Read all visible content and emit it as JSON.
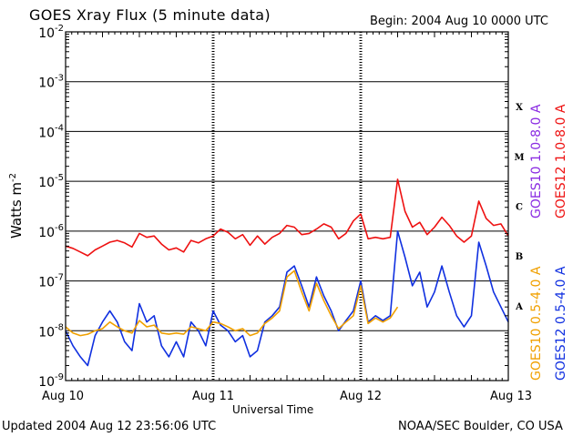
{
  "header": {
    "title": "GOES Xray Flux (5 minute data)",
    "begin": "Begin:  2004 Aug 10 0000 UTC"
  },
  "footer": {
    "updated": "Updated 2004 Aug 12 23:56:06 UTC",
    "credit": "NOAA/SEC Boulder, CO USA"
  },
  "axes": {
    "xlabel": "Universal Time",
    "ylabel_base": "Watts m",
    "ylabel_exp": "-2"
  },
  "legend": {
    "goes10_long": {
      "label": "GOES10 1.0-8.0 A",
      "color": "#8a2be2"
    },
    "goes12_long": {
      "label": "GOES12 1.0-8.0 A",
      "color": "#ee1111"
    },
    "goes10_short": {
      "label": "GOES10 0.5-4.0 A",
      "color": "#f0a000"
    },
    "goes12_short": {
      "label": "GOES12 0.5-4.0 A",
      "color": "#1030e0"
    }
  },
  "chart_data": {
    "type": "line",
    "title": "GOES Xray Flux (5 minute data)",
    "xlabel": "Universal Time",
    "ylabel": "Watts m-2",
    "yscale": "log",
    "ylim": [
      1e-09,
      0.01
    ],
    "xlim_days": [
      0,
      3
    ],
    "x_ticks": [
      {
        "day": 0,
        "label": "Aug 10"
      },
      {
        "day": 1,
        "label": "Aug 11"
      },
      {
        "day": 2,
        "label": "Aug 12"
      },
      {
        "day": 3,
        "label": "Aug 13"
      }
    ],
    "y_ticks": [
      {
        "exp": -2,
        "base": "10",
        "sup": "-2"
      },
      {
        "exp": -3,
        "base": "10",
        "sup": "-3"
      },
      {
        "exp": -4,
        "base": "10",
        "sup": "-4"
      },
      {
        "exp": -5,
        "base": "10",
        "sup": "-5"
      },
      {
        "exp": -6,
        "base": "10",
        "sup": "-6"
      },
      {
        "exp": -7,
        "base": "10",
        "sup": "-7"
      },
      {
        "exp": -8,
        "base": "10",
        "sup": "-8"
      },
      {
        "exp": -9,
        "base": "10",
        "sup": "-9"
      }
    ],
    "flare_classes": [
      {
        "label": "X",
        "exp": -3.5
      },
      {
        "label": "M",
        "exp": -4.5
      },
      {
        "label": "C",
        "exp": -5.5
      },
      {
        "label": "B",
        "exp": -6.5
      },
      {
        "label": "A",
        "exp": -7.5
      }
    ],
    "series": [
      {
        "name": "GOES12 1.0-8.0 A",
        "color": "#ee1111",
        "x": [
          0,
          0.05,
          0.1,
          0.15,
          0.2,
          0.25,
          0.3,
          0.35,
          0.4,
          0.45,
          0.5,
          0.55,
          0.6,
          0.65,
          0.7,
          0.75,
          0.8,
          0.85,
          0.9,
          0.95,
          1.0,
          1.05,
          1.1,
          1.15,
          1.2,
          1.25,
          1.3,
          1.35,
          1.4,
          1.45,
          1.5,
          1.55,
          1.6,
          1.65,
          1.7,
          1.75,
          1.8,
          1.85,
          1.9,
          1.95,
          2.0,
          2.05,
          2.1,
          2.15,
          2.2,
          2.25,
          2.3,
          2.35,
          2.4,
          2.45,
          2.5,
          2.55,
          2.6,
          2.65,
          2.7,
          2.75,
          2.8,
          2.85,
          2.9,
          2.95,
          3.0
        ],
        "values": [
          5e-07,
          4.5e-07,
          3.8e-07,
          3.2e-07,
          4.2e-07,
          5e-07,
          6e-07,
          6.5e-07,
          5.8e-07,
          4.8e-07,
          9e-07,
          7.5e-07,
          8e-07,
          5.5e-07,
          4.2e-07,
          4.6e-07,
          3.8e-07,
          6.5e-07,
          5.8e-07,
          7e-07,
          8e-07,
          1.1e-06,
          9.5e-07,
          7e-07,
          8.5e-07,
          5.2e-07,
          8e-07,
          5.5e-07,
          7.5e-07,
          9e-07,
          1.3e-06,
          1.2e-06,
          8.5e-07,
          9e-07,
          1.1e-06,
          1.4e-06,
          1.2e-06,
          7e-07,
          9e-07,
          1.6e-06,
          2.2e-06,
          7e-07,
          7.5e-07,
          7e-07,
          7.5e-07,
          1.1e-05,
          2.5e-06,
          1.2e-06,
          1.5e-06,
          8.5e-07,
          1.2e-06,
          1.9e-06,
          1.3e-06,
          8e-07,
          6e-07,
          8e-07,
          4e-06,
          1.8e-06,
          1.3e-06,
          1.4e-06,
          8e-07
        ]
      },
      {
        "name": "GOES12 0.5-4.0 A",
        "color": "#1030e0",
        "x": [
          0,
          0.05,
          0.1,
          0.15,
          0.2,
          0.25,
          0.3,
          0.35,
          0.4,
          0.45,
          0.5,
          0.55,
          0.6,
          0.65,
          0.7,
          0.75,
          0.8,
          0.85,
          0.9,
          0.95,
          1.0,
          1.05,
          1.1,
          1.15,
          1.2,
          1.25,
          1.3,
          1.35,
          1.4,
          1.45,
          1.5,
          1.55,
          1.6,
          1.65,
          1.7,
          1.75,
          1.8,
          1.85,
          1.9,
          1.95,
          2.0,
          2.05,
          2.1,
          2.15,
          2.2,
          2.25,
          2.3,
          2.35,
          2.4,
          2.45,
          2.5,
          2.55,
          2.6,
          2.65,
          2.7,
          2.75,
          2.8,
          2.85,
          2.9,
          2.95,
          3.0
        ],
        "values": [
          1e-08,
          5e-09,
          3e-09,
          2e-09,
          8e-09,
          1.5e-08,
          2.5e-08,
          1.5e-08,
          6e-09,
          4e-09,
          3.5e-08,
          1.5e-08,
          2e-08,
          5e-09,
          3e-09,
          6e-09,
          3e-09,
          1.5e-08,
          1e-08,
          5e-09,
          2.5e-08,
          1.3e-08,
          1e-08,
          6e-09,
          8e-09,
          3e-09,
          4e-09,
          1.5e-08,
          2e-08,
          3e-08,
          1.5e-07,
          2e-07,
          8e-08,
          3e-08,
          1.2e-07,
          5e-08,
          2.5e-08,
          1e-08,
          1.6e-08,
          2.5e-08,
          1e-07,
          1.5e-08,
          2e-08,
          1.6e-08,
          2e-08,
          1e-06,
          3e-07,
          8e-08,
          1.5e-07,
          3e-08,
          6e-08,
          2e-07,
          6e-08,
          2e-08,
          1.2e-08,
          2e-08,
          6e-07,
          2e-07,
          6e-08,
          3e-08,
          1.5e-08
        ]
      },
      {
        "name": "GOES10 0.5-4.0 A",
        "color": "#f0a000",
        "x": [
          0,
          0.05,
          0.1,
          0.15,
          0.2,
          0.25,
          0.3,
          0.35,
          0.4,
          0.45,
          0.5,
          0.55,
          0.6,
          0.65,
          0.7,
          0.75,
          0.8,
          0.85,
          0.9,
          0.95,
          1.0,
          1.05,
          1.1,
          1.15,
          1.2,
          1.25,
          1.3,
          1.35,
          1.4,
          1.45,
          1.5,
          1.55,
          1.6,
          1.65,
          1.7,
          1.75,
          1.8,
          1.85,
          1.9,
          1.95,
          2.0,
          2.05,
          2.1,
          2.15,
          2.2,
          2.25
        ],
        "values": [
          1.2e-08,
          9e-09,
          8e-09,
          8.5e-09,
          1e-08,
          1.1e-08,
          1.5e-08,
          1.2e-08,
          1e-08,
          9e-09,
          1.6e-08,
          1.2e-08,
          1.3e-08,
          9e-09,
          8.5e-09,
          9e-09,
          8.5e-09,
          1.2e-08,
          1.1e-08,
          1e-08,
          1.5e-08,
          1.4e-08,
          1.2e-08,
          1e-08,
          1.1e-08,
          8e-09,
          9e-09,
          1.4e-08,
          1.8e-08,
          2.5e-08,
          1.2e-07,
          1.6e-07,
          6e-08,
          2.5e-08,
          9e-08,
          4e-08,
          2e-08,
          1.1e-08,
          1.5e-08,
          2e-08,
          8e-08,
          1.4e-08,
          1.8e-08,
          1.5e-08,
          1.8e-08,
          3e-08
        ]
      }
    ]
  }
}
